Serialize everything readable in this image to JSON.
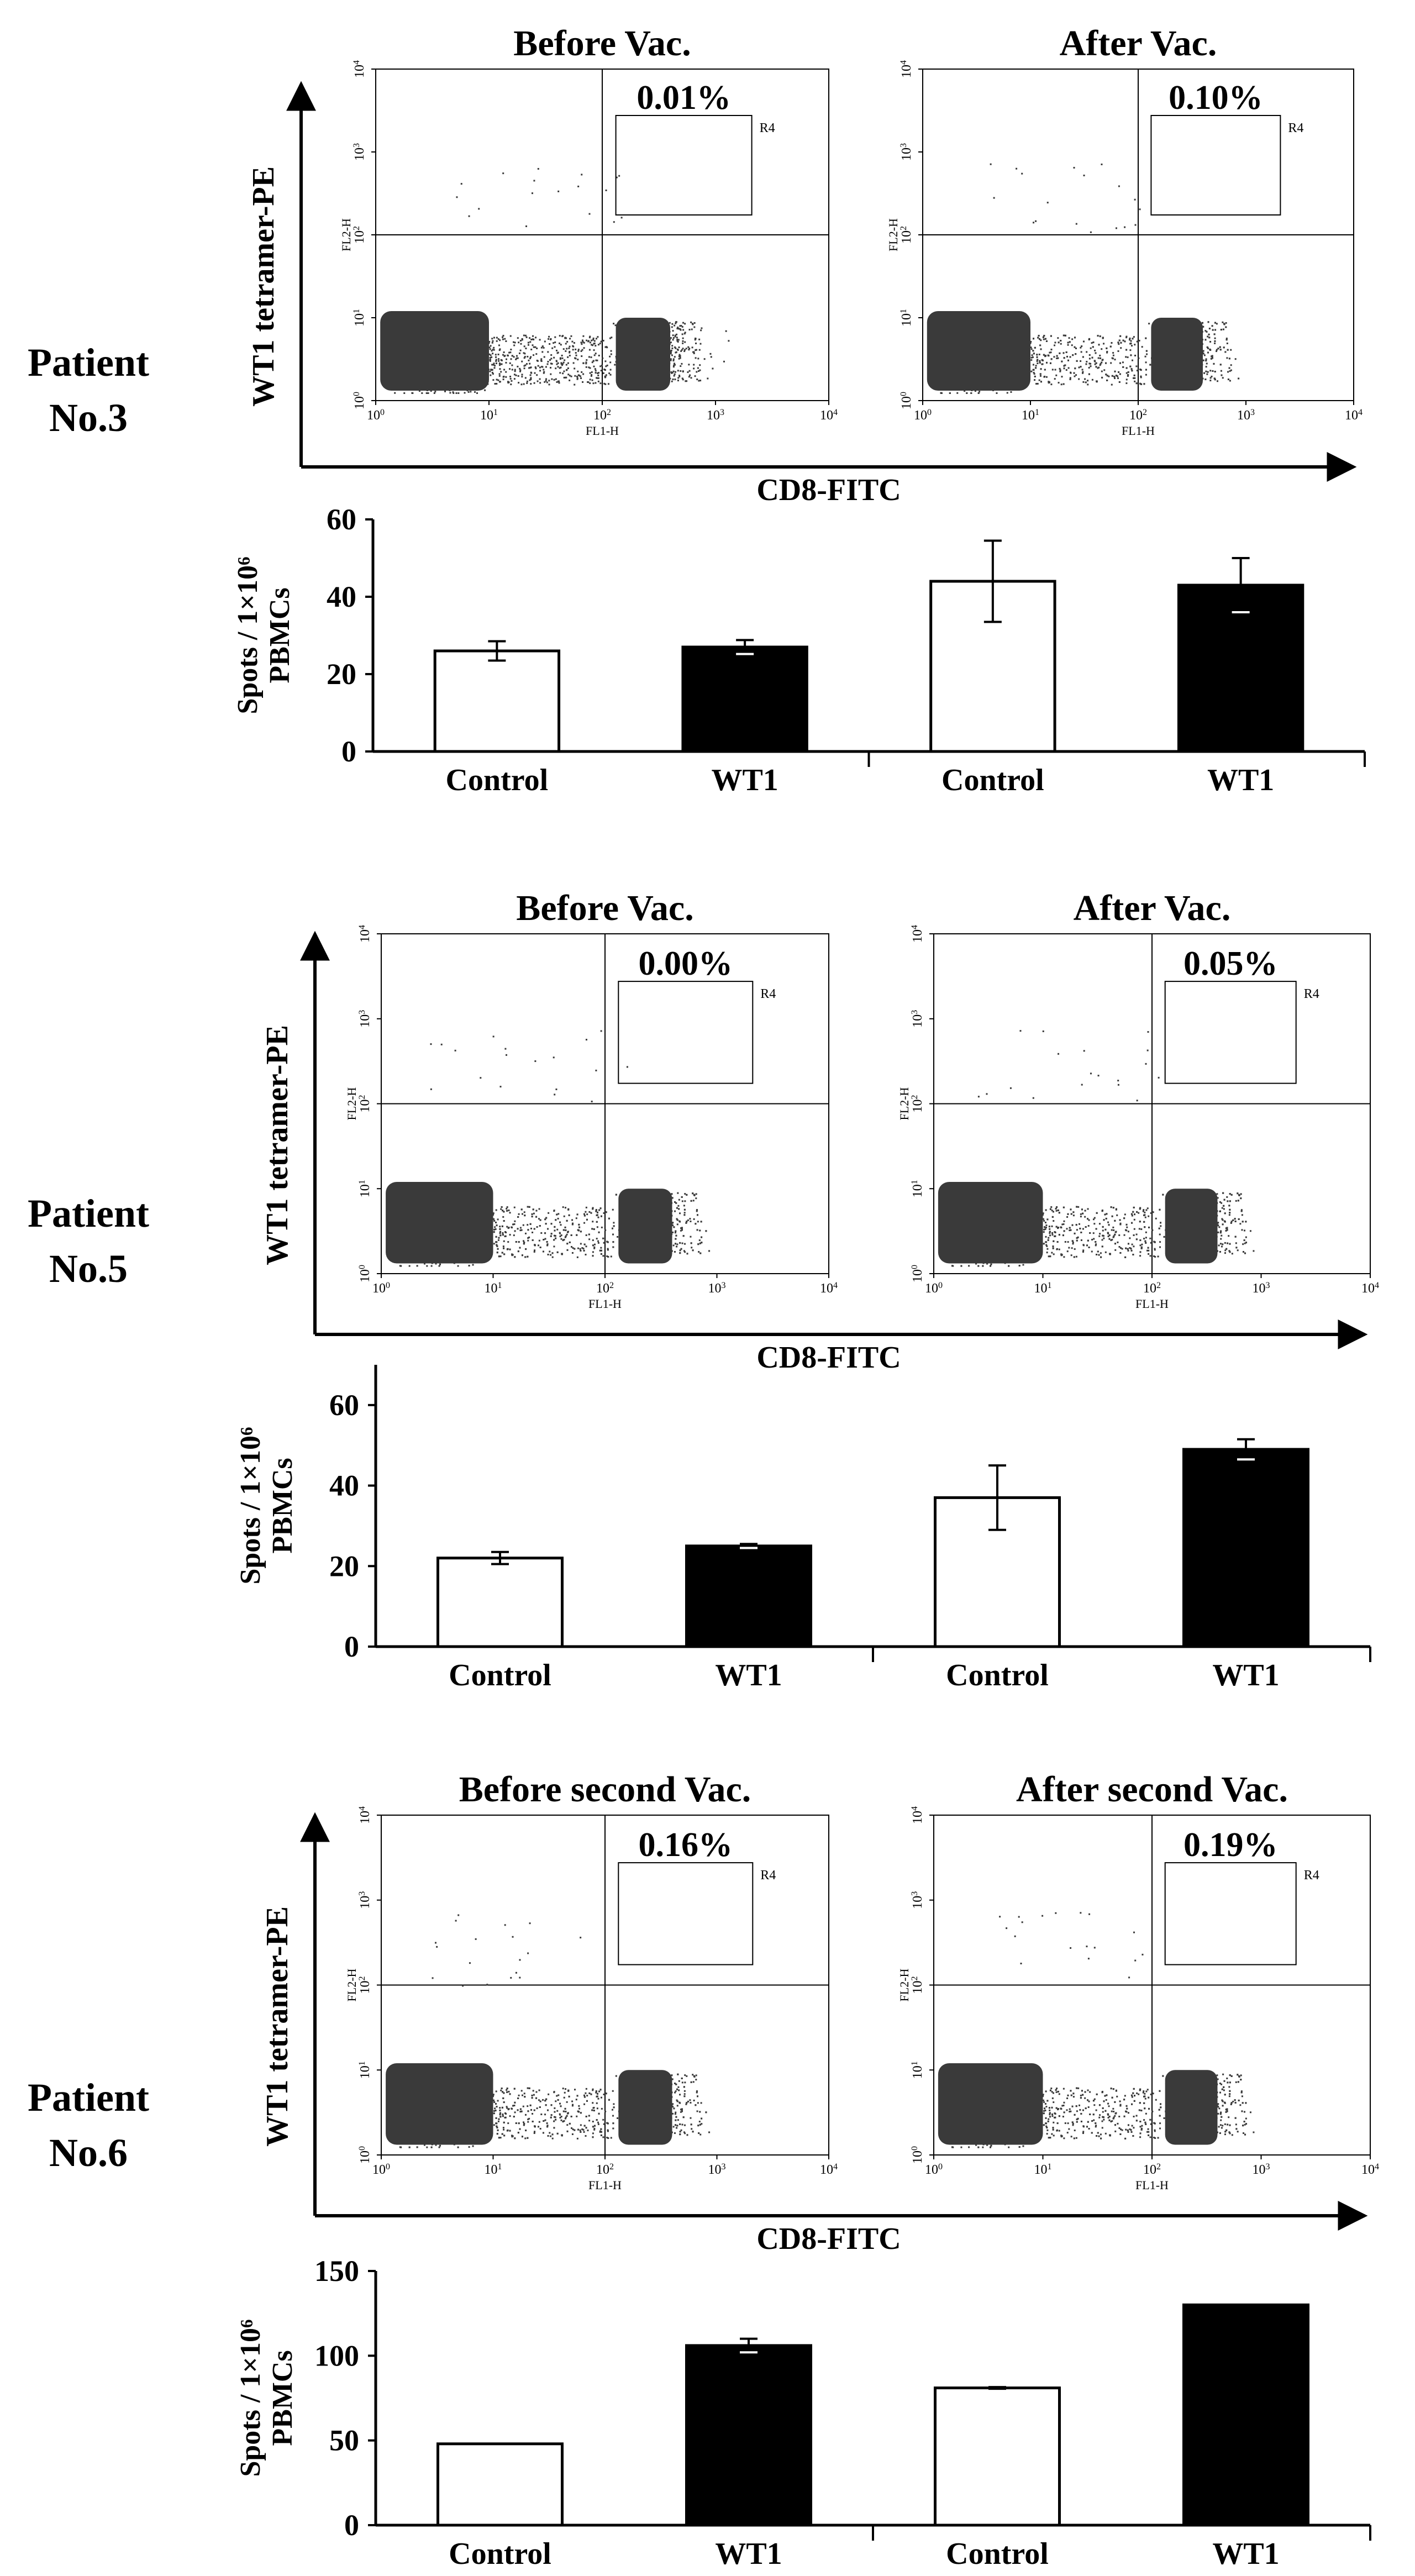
{
  "figure": {
    "colors": {
      "ink": "#000000",
      "dots": "#3a3a3a",
      "white_bar": "#ffffff",
      "black_bar": "#000000"
    },
    "patients": [
      {
        "label_line1": "Patient",
        "label_line2": "No.3",
        "flow": {
          "y_axis_label": "WT1 tetramer-PE",
          "x_axis_label": "CD8-FITC",
          "plots": [
            {
              "title": "Before Vac.",
              "percent": "0.01%",
              "region": "R4",
              "detector_y": "FL2-H",
              "detector_x": "FL1-H"
            },
            {
              "title": "After Vac.",
              "percent": "0.10%",
              "region": "R4",
              "detector_y": "FL2-H",
              "detector_x": "FL1-H"
            }
          ]
        },
        "chart_data": {
          "type": "bar",
          "ylabel_line1": "Spots / 1×10⁶",
          "ylabel_line2": "PBMCs",
          "categories": [
            "Control",
            "WT1",
            "Control",
            "WT1"
          ],
          "values": [
            26,
            27,
            44,
            43
          ],
          "errors": [
            2.5,
            1.8,
            10.5,
            7
          ],
          "fills": [
            "white",
            "black",
            "white",
            "black"
          ],
          "ylim": [
            0,
            60
          ],
          "yticks": [
            0,
            20,
            40,
            60
          ],
          "ytick_labels": [
            "0",
            "20",
            "40",
            "60"
          ]
        }
      },
      {
        "label_line1": "Patient",
        "label_line2": "No.5",
        "flow": {
          "y_axis_label": "WT1 tetramer-PE",
          "x_axis_label": "CD8-FITC",
          "plots": [
            {
              "title": "Before Vac.",
              "percent": "0.00%",
              "region": "R4",
              "detector_y": "FL2-H",
              "detector_x": "FL1-H"
            },
            {
              "title": "After Vac.",
              "percent": "0.05%",
              "region": "R4",
              "detector_y": "FL2-H",
              "detector_x": "FL1-H"
            }
          ]
        },
        "chart_data": {
          "type": "bar",
          "ylabel_line1": "Spots / 1×10⁶",
          "ylabel_line2": "PBMCs",
          "categories": [
            "Control",
            "WT1",
            "Control",
            "WT1"
          ],
          "values": [
            22,
            25,
            37,
            49
          ],
          "errors": [
            1.5,
            0.5,
            8,
            2.5
          ],
          "fills": [
            "white",
            "black",
            "white",
            "black"
          ],
          "ylim": [
            0,
            70
          ],
          "yticks": [
            0,
            20,
            40,
            60
          ],
          "ytick_labels": [
            "0",
            "20",
            "40",
            "60"
          ]
        }
      },
      {
        "label_line1": "Patient",
        "label_line2": "No.6",
        "flow": {
          "y_axis_label": "WT1 tetramer-PE",
          "x_axis_label": "CD8-FITC",
          "plots": [
            {
              "title": "Before second Vac.",
              "percent": "0.16%",
              "region": "R4",
              "detector_y": "FL2-H",
              "detector_x": "FL1-H"
            },
            {
              "title": "After second Vac.",
              "percent": "0.19%",
              "region": "R4",
              "detector_y": "FL2-H",
              "detector_x": "FL1-H"
            }
          ]
        },
        "chart_data": {
          "type": "bar",
          "ylabel_line1": "Spots / 1×10⁶",
          "ylabel_line2": "PBMCs",
          "categories": [
            "Control",
            "WT1",
            "Control",
            "WT1"
          ],
          "values": [
            48,
            106,
            81,
            130
          ],
          "errors": [
            0,
            4,
            0.5,
            0
          ],
          "fills": [
            "white",
            "black",
            "white",
            "black"
          ],
          "ylim": [
            0,
            150
          ],
          "yticks": [
            0,
            50,
            100,
            150
          ],
          "ytick_labels": [
            "0",
            "50",
            "100",
            "150"
          ]
        }
      }
    ],
    "flow_axes": {
      "decades": [
        "10",
        "10",
        "10",
        "10",
        "10"
      ],
      "exponents": [
        "0",
        "1",
        "2",
        "3",
        "4"
      ]
    }
  }
}
